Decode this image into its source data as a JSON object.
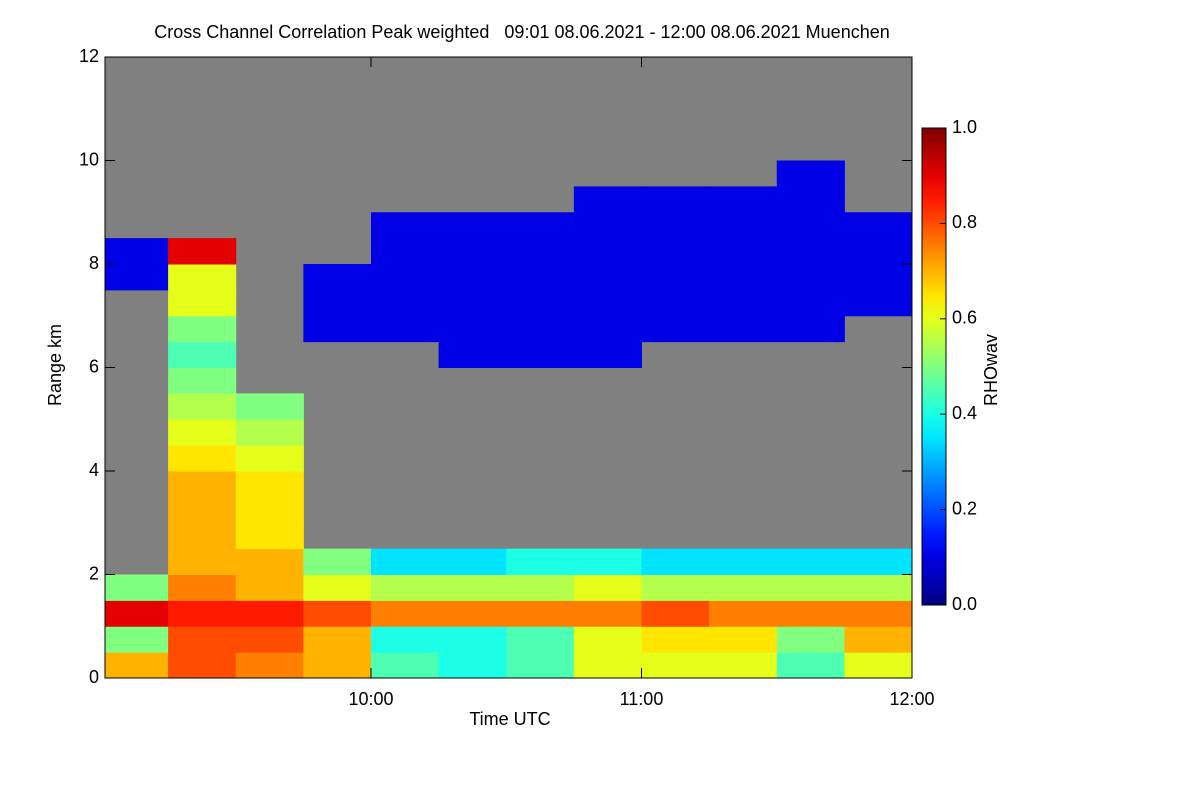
{
  "chart_data": {
    "type": "heatmap",
    "title": "Cross Channel Correlation Peak weighted   09:01 08.06.2021 - 12:00 08.06.2021 Muenchen",
    "x_label": "Time UTC",
    "y_label": "Range km",
    "colorbar_label": "RHOwav",
    "colormap": "jet",
    "missing_color": "#808080",
    "xlim": [
      9.0167,
      12.0
    ],
    "xticks": [
      {
        "value": 10,
        "label": "10:00"
      },
      {
        "value": 11,
        "label": "11:00"
      },
      {
        "value": 12,
        "label": "12:00"
      }
    ],
    "ylim": [
      0,
      12
    ],
    "yticks": [
      0,
      2,
      4,
      6,
      8,
      10,
      12
    ],
    "zlim": [
      0,
      1
    ],
    "zticks": [
      {
        "value": 0,
        "label": "0.0"
      },
      {
        "value": 0.2,
        "label": "0.2"
      },
      {
        "value": 0.4,
        "label": "0.4"
      },
      {
        "value": 0.6,
        "label": "0.6"
      },
      {
        "value": 0.8,
        "label": "0.8"
      },
      {
        "value": 1,
        "label": "1.0"
      }
    ],
    "x_bins": [
      9.0167,
      9.25,
      9.5,
      9.75,
      10,
      10.25,
      10.5,
      10.75,
      11,
      11.25,
      11.5,
      11.75,
      12
    ],
    "y_bins": [
      0,
      0.5,
      1,
      1.5,
      2,
      2.5,
      3,
      3.5,
      4,
      4.5,
      5,
      5.5,
      6,
      6.5,
      7,
      7.5,
      8,
      8.5,
      9,
      9.5,
      10,
      10.5,
      11,
      11.5,
      12
    ],
    "values": [
      [
        0.7,
        0.8,
        0.75,
        0.7,
        0.45,
        0.4,
        0.45,
        0.6,
        0.6,
        0.6,
        0.45,
        0.6
      ],
      [
        0.5,
        0.8,
        0.8,
        0.7,
        0.4,
        0.4,
        0.45,
        0.6,
        0.65,
        0.65,
        0.5,
        0.7
      ],
      [
        0.9,
        0.85,
        0.85,
        0.8,
        0.75,
        0.75,
        0.75,
        0.75,
        0.8,
        0.75,
        0.75,
        0.75
      ],
      [
        0.5,
        0.75,
        0.7,
        0.6,
        0.55,
        0.55,
        0.55,
        0.6,
        0.55,
        0.55,
        0.55,
        0.55
      ],
      [
        null,
        0.7,
        0.7,
        0.5,
        0.35,
        0.35,
        0.4,
        0.4,
        0.35,
        0.35,
        0.35,
        0.35
      ],
      [
        null,
        0.7,
        0.65,
        null,
        null,
        null,
        null,
        null,
        null,
        null,
        null,
        null
      ],
      [
        null,
        0.7,
        0.65,
        null,
        null,
        null,
        null,
        null,
        null,
        null,
        null,
        null
      ],
      [
        null,
        0.7,
        0.65,
        null,
        null,
        null,
        null,
        null,
        null,
        null,
        null,
        null
      ],
      [
        null,
        0.65,
        0.6,
        null,
        null,
        null,
        null,
        null,
        null,
        null,
        null,
        null
      ],
      [
        null,
        0.6,
        0.55,
        null,
        null,
        null,
        null,
        null,
        null,
        null,
        null,
        null
      ],
      [
        null,
        0.55,
        0.5,
        null,
        null,
        null,
        null,
        null,
        null,
        null,
        null,
        null
      ],
      [
        null,
        0.5,
        null,
        null,
        null,
        null,
        null,
        null,
        null,
        null,
        null,
        null
      ],
      [
        null,
        0.45,
        null,
        null,
        null,
        0.1,
        0.1,
        0.1,
        null,
        null,
        null,
        null
      ],
      [
        null,
        0.5,
        null,
        0.1,
        0.1,
        0.1,
        0.1,
        0.1,
        0.1,
        0.1,
        0.1,
        null
      ],
      [
        null,
        0.6,
        null,
        0.1,
        0.1,
        0.1,
        0.1,
        0.1,
        0.1,
        0.1,
        0.1,
        0.1
      ],
      [
        0.1,
        0.6,
        null,
        0.1,
        0.1,
        0.1,
        0.1,
        0.1,
        0.1,
        0.1,
        0.1,
        0.1
      ],
      [
        0.1,
        0.9,
        null,
        null,
        0.1,
        0.1,
        0.1,
        0.1,
        0.1,
        0.1,
        0.1,
        0.1
      ],
      [
        null,
        null,
        null,
        null,
        0.1,
        0.1,
        0.1,
        0.1,
        0.1,
        0.1,
        0.1,
        0.1
      ],
      [
        null,
        null,
        null,
        null,
        null,
        null,
        null,
        0.1,
        0.1,
        0.1,
        0.1,
        null
      ],
      [
        null,
        null,
        null,
        null,
        null,
        null,
        null,
        null,
        null,
        null,
        0.1,
        null
      ],
      [
        null,
        null,
        null,
        null,
        null,
        null,
        null,
        null,
        null,
        null,
        null,
        null
      ],
      [
        null,
        null,
        null,
        null,
        null,
        null,
        null,
        null,
        null,
        null,
        null,
        null
      ],
      [
        null,
        null,
        null,
        null,
        null,
        null,
        null,
        null,
        null,
        null,
        null,
        null
      ],
      [
        null,
        null,
        null,
        null,
        null,
        null,
        null,
        null,
        null,
        null,
        null,
        null
      ]
    ]
  }
}
